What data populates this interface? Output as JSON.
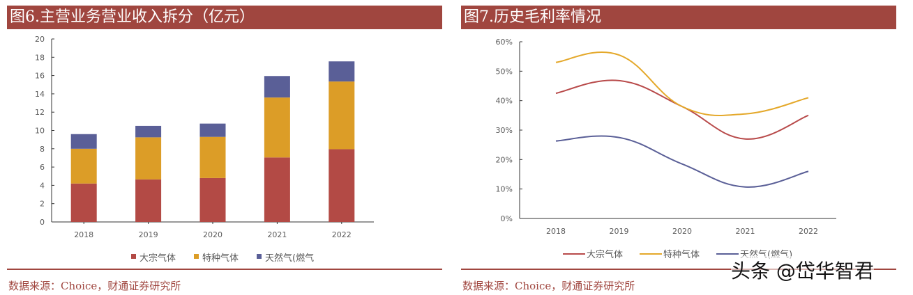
{
  "chart_data": [
    {
      "type": "bar",
      "stacked": true,
      "title": "图6.主营业务营业收入拆分（亿元）",
      "categories": [
        "2018",
        "2019",
        "2020",
        "2021",
        "2022"
      ],
      "series": [
        {
          "name": "大宗气体",
          "color": "#b34a45",
          "values": [
            4.2,
            4.65,
            4.8,
            7.05,
            7.95
          ]
        },
        {
          "name": "特种气体",
          "color": "#dc9d27",
          "values": [
            3.8,
            4.6,
            4.5,
            6.55,
            7.4
          ]
        },
        {
          "name": "天然气(燃气",
          "color": "#5a5f97",
          "values": [
            1.6,
            1.25,
            1.45,
            2.35,
            2.2
          ]
        }
      ],
      "ylim": [
        0,
        20
      ],
      "yticks": [
        "0",
        "2",
        "4",
        "6",
        "8",
        "10",
        "12",
        "14",
        "16",
        "18",
        "20"
      ],
      "grid": false,
      "legend": "bottom",
      "source": "数据来源：Choice，财通证券研究所"
    },
    {
      "type": "line",
      "smooth": true,
      "title": "图7.历史毛利率情况",
      "categories": [
        "2018",
        "2019",
        "2020",
        "2021",
        "2022"
      ],
      "series": [
        {
          "name": "大宗气体",
          "color": "#b84a4a",
          "values": [
            42.5,
            46.8,
            38,
            27,
            35
          ]
        },
        {
          "name": "特种气体",
          "color": "#e4a82a",
          "values": [
            53,
            55.5,
            38,
            35.5,
            41
          ]
        },
        {
          "name": "天然气(燃气)",
          "color": "#5a5f97",
          "values": [
            26.3,
            27.5,
            18.5,
            10.7,
            16
          ]
        }
      ],
      "ylim": [
        0,
        60
      ],
      "yticks": [
        "0%",
        "10%",
        "20%",
        "30%",
        "40%",
        "50%",
        "60%"
      ],
      "grid": false,
      "legend": "bottom",
      "source": "数据来源：Choice，财通证券研究所"
    }
  ],
  "watermark": "头条 @岱华智君"
}
